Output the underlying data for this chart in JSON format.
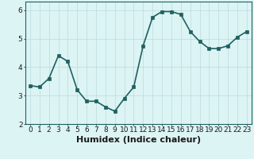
{
  "xlabel": "Humidex (Indice chaleur)",
  "ylabel": "",
  "x": [
    0,
    1,
    2,
    3,
    4,
    5,
    6,
    7,
    8,
    9,
    10,
    11,
    12,
    13,
    14,
    15,
    16,
    17,
    18,
    19,
    20,
    21,
    22,
    23
  ],
  "y": [
    3.35,
    3.3,
    3.6,
    4.4,
    4.2,
    3.2,
    2.8,
    2.8,
    2.6,
    2.45,
    2.9,
    3.3,
    4.75,
    5.75,
    5.95,
    5.95,
    5.85,
    5.25,
    4.9,
    4.65,
    4.65,
    4.75,
    5.05,
    5.25
  ],
  "line_color": "#206060",
  "marker": "s",
  "marker_size": 2.5,
  "bg_color": "#ddf4f4",
  "grid_color": "#c0dede",
  "xlim": [
    -0.5,
    23.5
  ],
  "ylim": [
    2.0,
    6.3
  ],
  "yticks": [
    2,
    3,
    4,
    5,
    6
  ],
  "xticks": [
    0,
    1,
    2,
    3,
    4,
    5,
    6,
    7,
    8,
    9,
    10,
    11,
    12,
    13,
    14,
    15,
    16,
    17,
    18,
    19,
    20,
    21,
    22,
    23
  ],
  "tick_fontsize": 6.5,
  "xlabel_fontsize": 8,
  "linewidth": 1.2
}
